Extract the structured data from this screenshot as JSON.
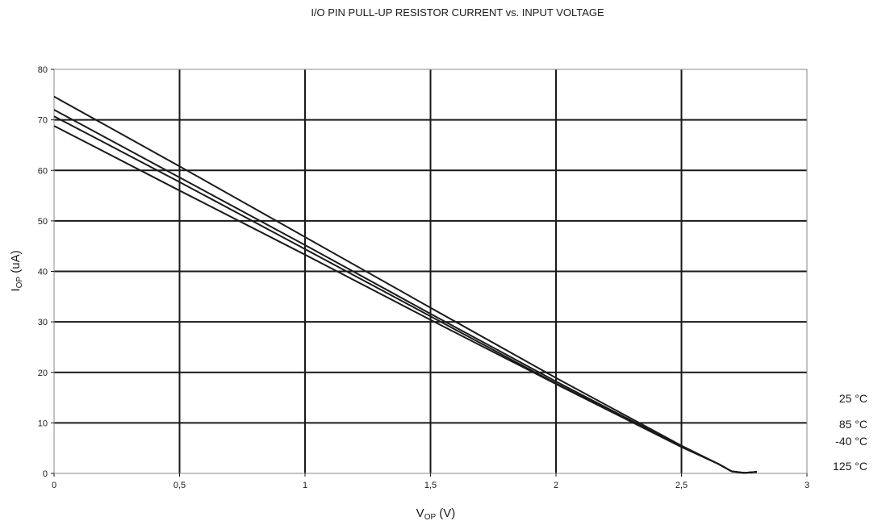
{
  "chart_data": {
    "type": "line",
    "title": "I/O PIN PULL-UP RESISTOR CURRENT vs. INPUT VOLTAGE",
    "xlabel": {
      "main": "V",
      "sub": "OP",
      "unit": " (V)"
    },
    "ylabel": {
      "main": "I",
      "sub": "OP",
      "unit": " (uA)"
    },
    "xlim": [
      0,
      3
    ],
    "ylim": [
      0,
      80
    ],
    "x_ticks": [
      "0",
      "0,5",
      "1",
      "1,5",
      "2",
      "2,5",
      "3"
    ],
    "y_ticks": [
      "0",
      "10",
      "20",
      "30",
      "40",
      "50",
      "60",
      "70",
      "80"
    ],
    "grid": true,
    "legend_labels": [
      "25 °C",
      "85 °C",
      "-40 °C",
      "125 °C"
    ],
    "series": [
      {
        "x": [
          0,
          0.5,
          1,
          1.5,
          2,
          2.5,
          2.65,
          2.7,
          2.75,
          2.8
        ],
        "y": [
          74.6,
          60.8,
          46.8,
          32.8,
          18.9,
          5.5,
          1.8,
          0.4,
          0.1,
          0.3
        ]
      },
      {
        "x": [
          0,
          0.5,
          1,
          1.5,
          2,
          2.5,
          2.65,
          2.7,
          2.75,
          2.8
        ],
        "y": [
          72.0,
          58.6,
          45.2,
          31.6,
          18.2,
          5.3,
          1.8,
          0.4,
          0.1,
          0.3
        ]
      },
      {
        "x": [
          0,
          0.5,
          1,
          1.5,
          2,
          2.5,
          2.65,
          2.7,
          2.75,
          2.8
        ],
        "y": [
          70.7,
          57.7,
          44.4,
          31.1,
          17.8,
          5.3,
          1.8,
          0.4,
          0.1,
          0.3
        ]
      },
      {
        "x": [
          0,
          0.5,
          1,
          1.5,
          2,
          2.5,
          2.65,
          2.7,
          2.75,
          2.8
        ],
        "y": [
          68.8,
          56.0,
          43.3,
          30.4,
          17.7,
          5.2,
          1.8,
          0.4,
          0.1,
          0.3
        ]
      }
    ]
  }
}
